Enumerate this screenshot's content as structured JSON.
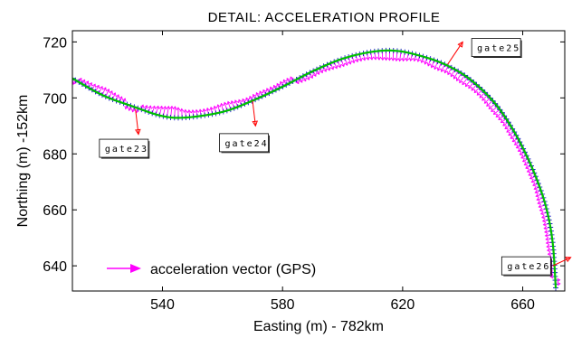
{
  "chart_data": {
    "type": "line",
    "title": "DETAIL: ACCELERATION PROFILE",
    "xlabel": "Easting (m) - 782km",
    "ylabel": "Northing (m) -152km",
    "xlim": [
      510,
      674
    ],
    "ylim": [
      631,
      724
    ],
    "xticks": [
      540,
      580,
      620,
      660
    ],
    "yticks": [
      640,
      660,
      680,
      700,
      720
    ],
    "grid": false,
    "legend": {
      "position": "bottom-left",
      "label": "acceleration vector (GPS)"
    },
    "colors": {
      "track": "#00c000",
      "points": "#0000c0",
      "vectors": "#ff00ff",
      "gate": "#ff0000"
    },
    "series": [
      {
        "kind": "track",
        "x": [
          510,
          520,
          530,
          540,
          548,
          560,
          570,
          580,
          590,
          600,
          610,
          618,
          626,
          634,
          642,
          650,
          656,
          661,
          665,
          668,
          670,
          671
        ],
        "y": [
          707,
          701,
          697,
          693.5,
          693,
          695,
          699,
          704,
          709.5,
          714,
          716.5,
          716.8,
          715,
          712,
          707,
          699,
          690,
          680,
          670,
          660,
          648,
          632
        ]
      }
    ],
    "gates": [
      {
        "label": "gate23",
        "box_x": 519,
        "box_y": 682,
        "anchor_x": 531,
        "anchor_y": 696,
        "tip_x": 532,
        "tip_y": 687
      },
      {
        "label": "gate24",
        "box_x": 559,
        "box_y": 684,
        "anchor_x": 570,
        "anchor_y": 699,
        "tip_x": 571,
        "tip_y": 690
      },
      {
        "label": "gate25",
        "box_x": 643,
        "box_y": 718,
        "anchor_x": 635,
        "anchor_y": 712,
        "tip_x": 640,
        "tip_y": 720
      },
      {
        "label": "gate26",
        "box_x": 653,
        "box_y": 640,
        "anchor_x": 670,
        "anchor_y": 640,
        "tip_x": 676,
        "tip_y": 643
      }
    ],
    "vector_scale_m_per_ms2": 3.2
  }
}
